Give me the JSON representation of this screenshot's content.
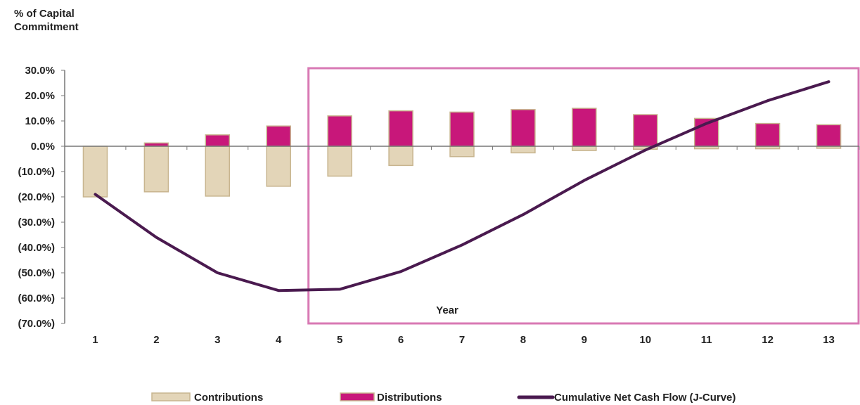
{
  "chart_data": {
    "type": "bar",
    "ylabel": "% of Capital Commitment",
    "xlabel": "Year",
    "categories": [
      "1",
      "2",
      "3",
      "4",
      "5",
      "6",
      "7",
      "8",
      "9",
      "10",
      "11",
      "12",
      "13"
    ],
    "yticks": [
      "30.0%",
      "20.0%",
      "10.0%",
      "0.0%",
      "(10.0%)",
      "(20.0%)",
      "(30.0%)",
      "(40.0%)",
      "(50.0%)",
      "(60.0%)",
      "(70.0%)"
    ],
    "ylim": [
      -70,
      30
    ],
    "grid": false,
    "legend_position": "bottom",
    "series": [
      {
        "name": "Contributions",
        "type": "bar",
        "color": "#e3d5b8",
        "border": "#c8b58f",
        "values": [
          -20.0,
          -18.0,
          -19.7,
          -15.8,
          -11.8,
          -7.6,
          -4.1,
          -2.6,
          -1.7,
          -1.2,
          -1.0,
          -1.0,
          -0.8
        ]
      },
      {
        "name": "Distributions",
        "type": "bar",
        "color": "#c8177a",
        "border": "#c8b58f",
        "values": [
          0.0,
          1.3,
          4.5,
          8.0,
          12.0,
          14.0,
          13.5,
          14.5,
          15.0,
          12.5,
          11.0,
          9.0,
          8.5
        ]
      },
      {
        "name": "Cumulative Net Cash Flow (J-Curve)",
        "type": "line",
        "color": "#4a1a4f",
        "values": [
          -19.0,
          -36.0,
          -50.0,
          -57.0,
          -56.5,
          -49.5,
          -39.0,
          -27.0,
          -13.5,
          -1.5,
          9.0,
          18.0,
          25.5
        ]
      }
    ],
    "highlight": {
      "color": "#d879b4",
      "from_category": "5",
      "to_category": "13"
    }
  }
}
